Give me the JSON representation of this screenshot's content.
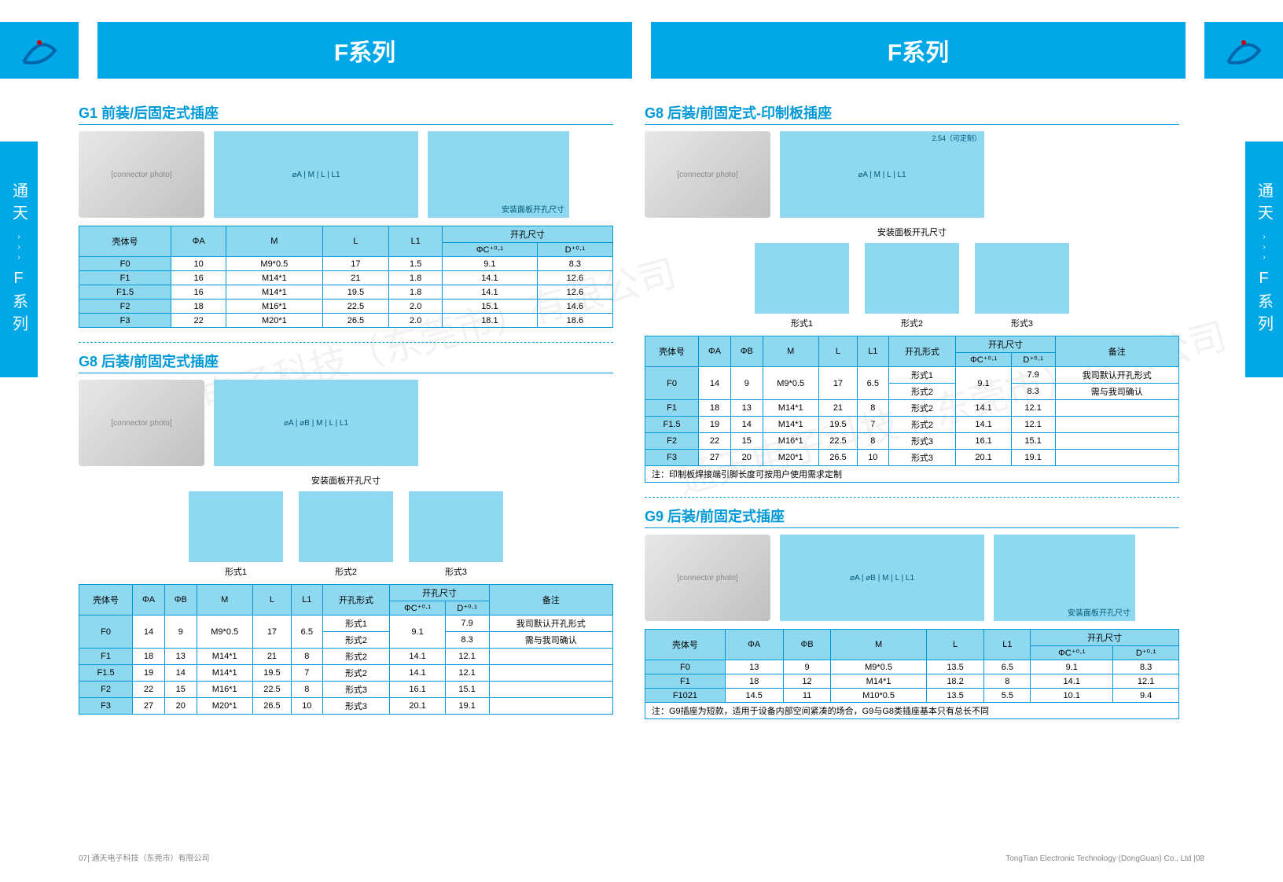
{
  "header": {
    "series_label": "F系列"
  },
  "side_tab": {
    "text_top": "通天",
    "text_bottom": "F系列"
  },
  "colors": {
    "brand_blue": "#00a8e8",
    "title_blue": "#0099d8",
    "cell_blue": "#8ed8f0"
  },
  "captions": {
    "panel_hole": "安装面板开孔尺寸",
    "form1": "形式1",
    "form2": "形式2",
    "form3": "形式3",
    "pitch": "2.54（可定制）"
  },
  "footer": {
    "left": "07| 通天电子科技（东莞市）有限公司",
    "right": "TongTian Electronic Technology (DongGuan) Co., Ltd |08"
  },
  "watermark": "通天电子科技（东莞市）有限公司",
  "g1": {
    "title": "G1 前装/后固定式插座",
    "headers": [
      "壳体号",
      "ΦA",
      "M",
      "L",
      "L1",
      "开孔尺寸"
    ],
    "sub_headers": [
      "ΦC⁺⁰·¹",
      "D⁺⁰·¹"
    ],
    "rows": [
      [
        "F0",
        "10",
        "M9*0.5",
        "17",
        "1.5",
        "9.1",
        "8.3"
      ],
      [
        "F1",
        "16",
        "M14*1",
        "21",
        "1.8",
        "14.1",
        "12.6"
      ],
      [
        "F1.5",
        "16",
        "M14*1",
        "19.5",
        "1.8",
        "14.1",
        "12.6"
      ],
      [
        "F2",
        "18",
        "M16*1",
        "22.5",
        "2.0",
        "15.1",
        "14.6"
      ],
      [
        "F3",
        "22",
        "M20*1",
        "26.5",
        "2.0",
        "18.1",
        "18.6"
      ]
    ]
  },
  "g8_left": {
    "title": "G8 后装/前固定式插座",
    "headers": [
      "壳体号",
      "ΦA",
      "ΦB",
      "M",
      "L",
      "L1",
      "开孔形式",
      "开孔尺寸",
      "备注"
    ],
    "sub_headers": [
      "ΦC⁺⁰·¹",
      "D⁺⁰·¹"
    ],
    "rows": [
      [
        "F0",
        "14",
        "9",
        "M9*0.5",
        "17",
        "6.5",
        "形式1",
        "9.1",
        "7.9",
        "我司默认开孔形式"
      ],
      [
        "",
        "",
        "",
        "",
        "",
        "",
        "形式2",
        "",
        "8.3",
        "需与我司确认"
      ],
      [
        "F1",
        "18",
        "13",
        "M14*1",
        "21",
        "8",
        "形式2",
        "14.1",
        "12.1",
        ""
      ],
      [
        "F1.5",
        "19",
        "14",
        "M14*1",
        "19.5",
        "7",
        "形式2",
        "14.1",
        "12.1",
        ""
      ],
      [
        "F2",
        "22",
        "15",
        "M16*1",
        "22.5",
        "8",
        "形式3",
        "16.1",
        "15.1",
        ""
      ],
      [
        "F3",
        "27",
        "20",
        "M20*1",
        "26.5",
        "10",
        "形式3",
        "20.1",
        "19.1",
        ""
      ]
    ]
  },
  "g8_right": {
    "title": "G8 后装/前固定式-印制板插座",
    "note": "注：印制板焊接端引脚长度可按用户使用需求定制",
    "rows": [
      [
        "F0",
        "14",
        "9",
        "M9*0.5",
        "17",
        "6.5",
        "形式1",
        "9.1",
        "7.9",
        "我司默认开孔形式"
      ],
      [
        "",
        "",
        "",
        "",
        "",
        "",
        "形式2",
        "",
        "8.3",
        "需与我司确认"
      ],
      [
        "F1",
        "18",
        "13",
        "M14*1",
        "21",
        "8",
        "形式2",
        "14.1",
        "12.1",
        ""
      ],
      [
        "F1.5",
        "19",
        "14",
        "M14*1",
        "19.5",
        "7",
        "形式2",
        "14.1",
        "12.1",
        ""
      ],
      [
        "F2",
        "22",
        "15",
        "M16*1",
        "22.5",
        "8",
        "形式3",
        "16.1",
        "15.1",
        ""
      ],
      [
        "F3",
        "27",
        "20",
        "M20*1",
        "26.5",
        "10",
        "形式3",
        "20.1",
        "19.1",
        ""
      ]
    ]
  },
  "g9": {
    "title": "G9 后装/前固定式插座",
    "headers": [
      "壳体号",
      "ΦA",
      "ΦB",
      "M",
      "L",
      "L1",
      "开孔尺寸"
    ],
    "sub_headers": [
      "ΦC⁺⁰·¹",
      "D⁺⁰·¹"
    ],
    "rows": [
      [
        "F0",
        "13",
        "9",
        "M9*0.5",
        "13.5",
        "6.5",
        "9.1",
        "8.3"
      ],
      [
        "F1",
        "18",
        "12",
        "M14*1",
        "18.2",
        "8",
        "14.1",
        "12.1"
      ],
      [
        "F1021",
        "14.5",
        "11",
        "M10*0.5",
        "13.5",
        "5.5",
        "10.1",
        "9.4"
      ]
    ],
    "note": "注：G9插座为短款，适用于设备内部空间紧凑的场合，G9与G8类插座基本只有总长不同"
  }
}
